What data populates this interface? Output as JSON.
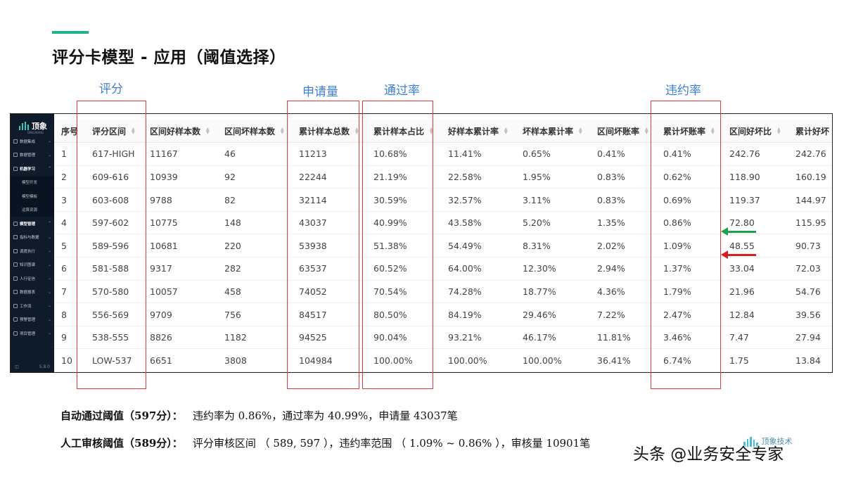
{
  "slide": {
    "title": "评分卡模型 - 应用（阈值选择）"
  },
  "annotations": {
    "score": "评分",
    "apply": "申请量",
    "pass_rate": "通过率",
    "default_rate": "违约率"
  },
  "sidebar": {
    "brand": "顶象",
    "brand_sub": "DINGXIANG",
    "items": [
      {
        "label": "数据集成",
        "type": "item"
      },
      {
        "label": "数据管理",
        "type": "item"
      },
      {
        "label": "机器学习",
        "type": "active"
      },
      {
        "label": "模型开发",
        "type": "sub"
      },
      {
        "label": "模型模板",
        "type": "sub"
      },
      {
        "label": "运算资源",
        "type": "sub"
      },
      {
        "label": "模型管理",
        "type": "active"
      },
      {
        "label": "指标与数据",
        "type": "item"
      },
      {
        "label": "调度执行",
        "type": "item"
      },
      {
        "label": "知识图谱",
        "type": "item"
      },
      {
        "label": "人行征信",
        "type": "item"
      },
      {
        "label": "数据报表",
        "type": "item"
      },
      {
        "label": "工作流",
        "type": "item"
      },
      {
        "label": "预警管理",
        "type": "item"
      },
      {
        "label": "项目管理",
        "type": "item"
      }
    ],
    "version": "5.8.0"
  },
  "table": {
    "columns": [
      "序号",
      "评分区间",
      "区间好样本数",
      "区间坏样本数",
      "累计样本总数",
      "累计样本占比",
      "好样本累计率",
      "坏样本累计率",
      "区间坏账率",
      "累计坏账率",
      "区间好坏比",
      "累计好坏"
    ],
    "rows": [
      [
        "1",
        "617-HIGH",
        "11167",
        "46",
        "11213",
        "10.68%",
        "11.41%",
        "0.65%",
        "0.41%",
        "0.41%",
        "242.76",
        "242.76"
      ],
      [
        "2",
        "609-616",
        "10939",
        "92",
        "22244",
        "21.19%",
        "22.58%",
        "1.95%",
        "0.83%",
        "0.62%",
        "118.90",
        "160.19"
      ],
      [
        "3",
        "603-608",
        "9788",
        "82",
        "32114",
        "30.59%",
        "32.57%",
        "3.11%",
        "0.83%",
        "0.69%",
        "119.37",
        "144.97"
      ],
      [
        "4",
        "597-602",
        "10775",
        "148",
        "43037",
        "40.99%",
        "43.58%",
        "5.20%",
        "1.35%",
        "0.86%",
        "72.80",
        "115.95"
      ],
      [
        "5",
        "589-596",
        "10681",
        "220",
        "53938",
        "51.38%",
        "54.49%",
        "8.31%",
        "2.02%",
        "1.09%",
        "48.55",
        "90.73"
      ],
      [
        "6",
        "581-588",
        "9317",
        "282",
        "63537",
        "60.52%",
        "64.00%",
        "12.30%",
        "2.94%",
        "1.37%",
        "33.04",
        "72.03"
      ],
      [
        "7",
        "570-580",
        "10057",
        "458",
        "74052",
        "70.54%",
        "74.28%",
        "18.77%",
        "4.36%",
        "1.79%",
        "21.96",
        "54.76"
      ],
      [
        "8",
        "556-569",
        "9709",
        "756",
        "84517",
        "80.50%",
        "84.19%",
        "29.46%",
        "7.22%",
        "2.47%",
        "12.84",
        "39.56"
      ],
      [
        "9",
        "538-555",
        "8826",
        "1182",
        "94525",
        "90.04%",
        "93.21%",
        "46.17%",
        "11.81%",
        "3.46%",
        "7.47",
        "27.94"
      ],
      [
        "10",
        "LOW-537",
        "6651",
        "3808",
        "104984",
        "100.00%",
        "100.00%",
        "100.00%",
        "36.41%",
        "6.74%",
        "1.75",
        "13.84"
      ]
    ]
  },
  "notes": [
    {
      "label": "自动通过阈值（597分）：",
      "text": "违约率为 0.86%，通过率为 40.99%，申请量 43037笔"
    },
    {
      "label": "人工审核阈值（589分）：",
      "text": "评分审核区间 （ 589, 597 ），违约率范围 （ 1.09% ~ 0.86% ），审核量 10901笔"
    }
  ],
  "brand_logo": "顶象技术",
  "watermark": "头条 @业务安全专家",
  "colors": {
    "accent": "#1fb38a",
    "annotation": "#3d7fd6",
    "highlight_box": "#e0393e",
    "arrow_green": "#1aa34a",
    "arrow_red": "#d42020",
    "sidebar_bg": "#0f1a2b"
  }
}
